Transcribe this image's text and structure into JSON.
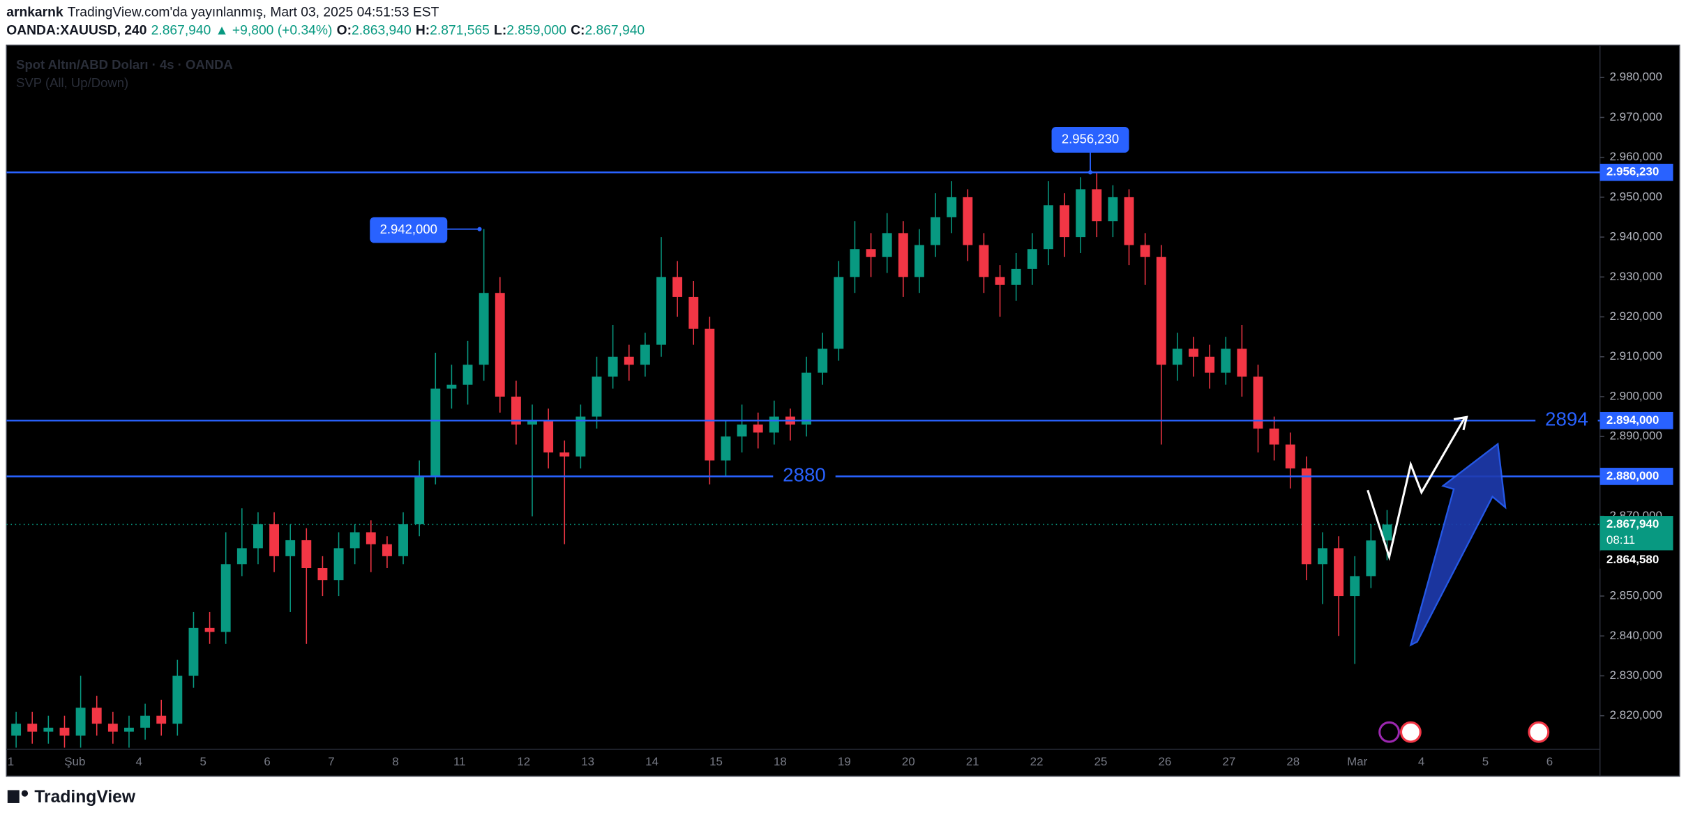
{
  "header": {
    "author": "arnkarnk",
    "published": "TradingView.com'da yayınlanmış, Mart 03, 2025 04:51:53 EST",
    "symbol": "OANDA:XAUUSD, 240",
    "price": "2.867,940",
    "change": "▲ +9,800 (+0.34%)",
    "o_label": "O:",
    "o": "2.863,940",
    "h_label": "H:",
    "h": "2.871,565",
    "l_label": "L:",
    "l": "2.859,000",
    "c_label": "C:",
    "c": "2.867,940"
  },
  "footer": {
    "brand": "TradingView"
  },
  "chart_data": {
    "type": "candlestick",
    "title": "Spot Altın/ABD Doları · 4s · OANDA",
    "indicator": "SVP (All, Up/Down)",
    "colors": {
      "up": "#089981",
      "down": "#f23645",
      "level": "#2962ff"
    },
    "open": [
      2815,
      2818,
      2816,
      2817,
      2815,
      2822,
      2818,
      2816,
      2817,
      2820,
      2818,
      2830,
      2842,
      2841,
      2858,
      2862,
      2868,
      2860,
      2864,
      2857,
      2854,
      2862,
      2866,
      2863,
      2860,
      2868,
      2880,
      2902,
      2903,
      2908,
      2926,
      2900,
      2893,
      2894,
      2886,
      2885,
      2895,
      2905,
      2910,
      2908,
      2913,
      2930,
      2925,
      2917,
      2884,
      2890,
      2893,
      2891,
      2895,
      2893,
      2906,
      2912,
      2930,
      2937,
      2935,
      2941,
      2930,
      2938,
      2945,
      2950,
      2938,
      2930,
      2928,
      2932,
      2937,
      2948,
      2940,
      2952,
      2944,
      2950,
      2938,
      2935,
      2908,
      2912,
      2910,
      2906,
      2912,
      2905,
      2892,
      2888,
      2882,
      2858,
      2862,
      2850,
      2855,
      2863.94
    ],
    "high": [
      2821,
      2821,
      2820,
      2820,
      2830,
      2825,
      2821,
      2820,
      2823,
      2824,
      2834,
      2846,
      2846,
      2866,
      2872,
      2871,
      2871,
      2868,
      2867,
      2860,
      2866,
      2868,
      2869,
      2865,
      2871,
      2884,
      2911,
      2908,
      2914,
      2942,
      2930,
      2904,
      2898,
      2897,
      2889,
      2898,
      2910,
      2918,
      2913,
      2916,
      2940,
      2934,
      2929,
      2920,
      2894,
      2898,
      2896,
      2899,
      2897,
      2910,
      2916,
      2934,
      2944,
      2941,
      2946,
      2944,
      2942,
      2951,
      2954,
      2952,
      2941,
      2933,
      2936,
      2941,
      2954,
      2951,
      2955,
      2956.23,
      2953,
      2952,
      2941,
      2938,
      2916,
      2915,
      2913,
      2915,
      2918,
      2908,
      2895,
      2891,
      2885,
      2866,
      2865,
      2860,
      2868,
      2871.565
    ],
    "low": [
      2812,
      2813,
      2813,
      2812,
      2812,
      2815,
      2813,
      2812,
      2814,
      2815,
      2815,
      2827,
      2838,
      2838,
      2855,
      2858,
      2856,
      2846,
      2838,
      2850,
      2850,
      2858,
      2856,
      2857,
      2858,
      2865,
      2878,
      2897,
      2898,
      2904,
      2896,
      2888,
      2870,
      2882,
      2863,
      2882,
      2892,
      2902,
      2904,
      2905,
      2910,
      2920,
      2913,
      2878,
      2880,
      2886,
      2887,
      2888,
      2889,
      2890,
      2903,
      2909,
      2926,
      2930,
      2931,
      2925,
      2926,
      2935,
      2941,
      2934,
      2926,
      2920,
      2924,
      2928,
      2933,
      2935,
      2936,
      2940,
      2940,
      2933,
      2928,
      2888,
      2904,
      2905,
      2902,
      2903,
      2900,
      2886,
      2884,
      2877,
      2854,
      2848,
      2840,
      2833,
      2852,
      2859
    ],
    "close": [
      2818,
      2816,
      2817,
      2815,
      2822,
      2818,
      2816,
      2817,
      2820,
      2818,
      2830,
      2842,
      2841,
      2858,
      2862,
      2868,
      2860,
      2864,
      2857,
      2854,
      2862,
      2866,
      2863,
      2860,
      2868,
      2880,
      2902,
      2903,
      2908,
      2926,
      2900,
      2893,
      2894,
      2886,
      2885,
      2895,
      2905,
      2910,
      2908,
      2913,
      2930,
      2925,
      2917,
      2884,
      2890,
      2893,
      2891,
      2895,
      2893,
      2906,
      2912,
      2930,
      2937,
      2935,
      2941,
      2930,
      2938,
      2945,
      2950,
      2938,
      2930,
      2928,
      2932,
      2937,
      2948,
      2940,
      2952,
      2944,
      2950,
      2938,
      2935,
      2908,
      2912,
      2910,
      2906,
      2912,
      2905,
      2892,
      2888,
      2882,
      2858,
      2862,
      2850,
      2855,
      2863.94,
      2867.94
    ],
    "ylim": [
      2804.85,
      2988.12
    ],
    "yticks": [
      {
        "value": 2820,
        "label": "2.820,000"
      },
      {
        "value": 2830,
        "label": "2.830,000"
      },
      {
        "value": 2840,
        "label": "2.840,000"
      },
      {
        "value": 2850,
        "label": "2.850,000"
      },
      {
        "value": 2860,
        "label": "2.860,000"
      },
      {
        "value": 2870,
        "label": "2.870,000"
      },
      {
        "value": 2880,
        "label": "2.880,000"
      },
      {
        "value": 2890,
        "label": "2.890,000"
      },
      {
        "value": 2900,
        "label": "2.900,000"
      },
      {
        "value": 2910,
        "label": "2.910,000"
      },
      {
        "value": 2920,
        "label": "2.920,000"
      },
      {
        "value": 2930,
        "label": "2.930,000"
      },
      {
        "value": 2940,
        "label": "2.940,000"
      },
      {
        "value": 2950,
        "label": "2.950,000"
      },
      {
        "value": 2960,
        "label": "2.960,000"
      },
      {
        "value": 2970,
        "label": "2.970,000"
      },
      {
        "value": 2980,
        "label": "2.980,000"
      }
    ],
    "grid": false,
    "x_labels": [
      "1",
      "Şub",
      "4",
      "5",
      "6",
      "7",
      "8",
      "11",
      "12",
      "13",
      "14",
      "15",
      "18",
      "19",
      "20",
      "21",
      "22",
      "25",
      "26",
      "27",
      "28",
      "Mar",
      "4",
      "5",
      "6"
    ],
    "levels": [
      {
        "value": 2956.23,
        "label": "2.956,230"
      },
      {
        "value": 2894,
        "label": "2.894,000",
        "text": "2894"
      },
      {
        "value": 2880,
        "label": "2.880,000",
        "text": "2880"
      }
    ],
    "annotations": [
      {
        "value": 2942,
        "label": "2.942,000"
      },
      {
        "value": 2956.23,
        "label": "2.956,230"
      }
    ],
    "current": {
      "value": 2867.94,
      "label": "2.867,940",
      "countdown": "08:11"
    },
    "prev_close": {
      "value": 2864.58,
      "label": "2.864,580"
    }
  }
}
